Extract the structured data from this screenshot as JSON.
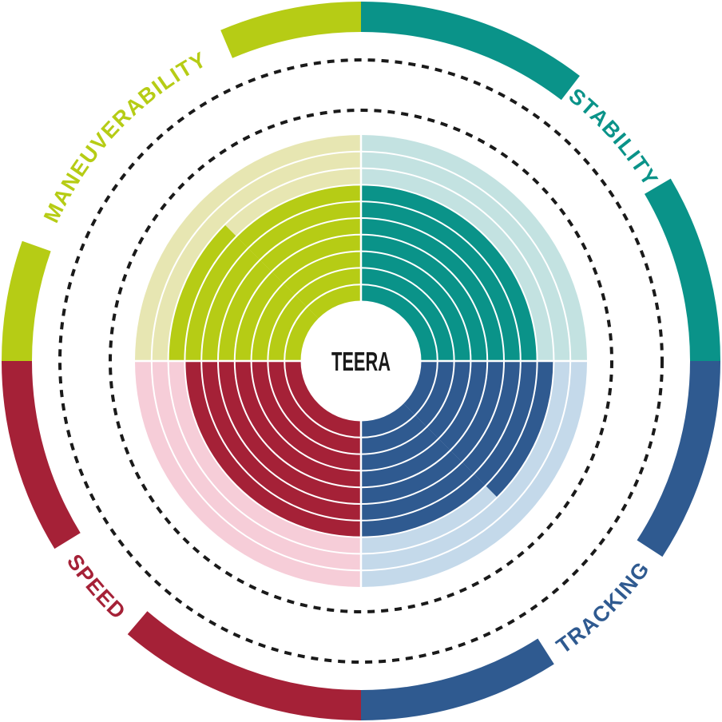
{
  "page": {
    "background": "#ffffff"
  },
  "chart_data": {
    "type": "radial-ring-gauge",
    "title": "TEERA",
    "rings_total": 10,
    "legend_position": "curved labels around outer broken ring",
    "grid": "concentric white ring separators + two dashed guide circles",
    "categories": [
      {
        "label": "MANEUVERABILITY",
        "value": 7.5,
        "color": "#B6CC15",
        "pale_color": "#E7E6B2",
        "quadrant_deg": [
          270,
          360
        ],
        "fill_segments": [
          {
            "from_deg": 270,
            "to_deg": 315,
            "rings": 8
          },
          {
            "from_deg": 315,
            "to_deg": 360,
            "rings": 7
          }
        ],
        "outer_arcs_deg": [
          [
            270,
            289.5
          ],
          [
            337,
            360
          ]
        ],
        "label_center_deg": 313.5,
        "label_side": "top"
      },
      {
        "label": "STABILITY",
        "value": 7,
        "color": "#0A9389",
        "pale_color": "#C3E2E1",
        "quadrant_deg": [
          0,
          90
        ],
        "fill_segments": [
          {
            "from_deg": 0,
            "to_deg": 90,
            "rings": 7
          }
        ],
        "outer_arcs_deg": [
          [
            0,
            37.5
          ],
          [
            59.5,
            90
          ]
        ],
        "label_center_deg": 48.5,
        "label_side": "top"
      },
      {
        "label": "TRACKING",
        "value": 7.5,
        "color": "#2F5A90",
        "pale_color": "#C4D9EA",
        "quadrant_deg": [
          90,
          180
        ],
        "fill_segments": [
          {
            "from_deg": 90,
            "to_deg": 135,
            "rings": 8
          },
          {
            "from_deg": 135,
            "to_deg": 180,
            "rings": 7
          }
        ],
        "outer_arcs_deg": [
          [
            90,
            123
          ],
          [
            147.5,
            180
          ]
        ],
        "label_center_deg": 135.5,
        "label_side": "bottom"
      },
      {
        "label": "SPEED",
        "value": 7,
        "color": "#A52137",
        "pale_color": "#F6CDD8",
        "quadrant_deg": [
          180,
          270
        ],
        "fill_segments": [
          {
            "from_deg": 180,
            "to_deg": 270,
            "rings": 7
          }
        ],
        "outer_arcs_deg": [
          [
            180,
            220.5
          ],
          [
            238.5,
            270
          ]
        ],
        "label_center_deg": 229.5,
        "label_side": "bottom"
      }
    ],
    "geometry": {
      "center": [
        452,
        452
      ],
      "hole_radius": 75,
      "rings_outer_radius": 283,
      "dashed_circle_radii": [
        314,
        377
      ],
      "outer_band_mid_radius": 431,
      "outer_band_width": 38,
      "label_radius_top": 418,
      "label_radius_bottom": 446
    },
    "styles": {
      "separator_color": "#ffffff",
      "dash_color": "#1a1a1a",
      "background": "#ffffff"
    }
  }
}
